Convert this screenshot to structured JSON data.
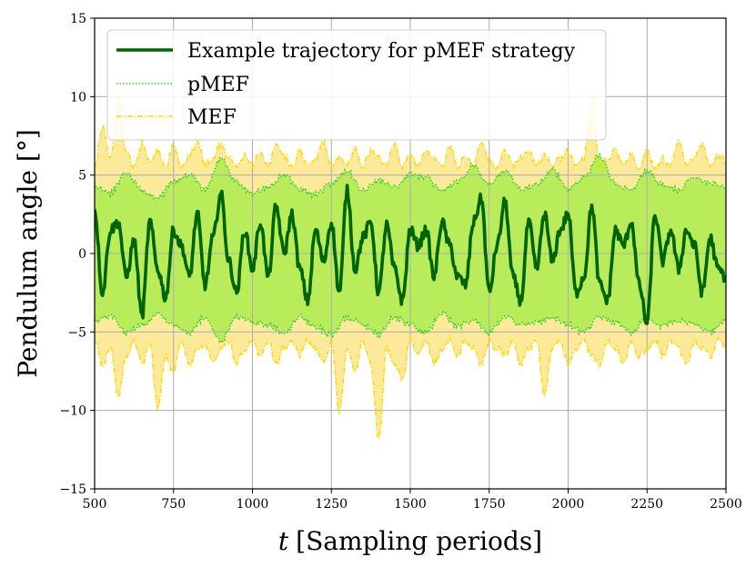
{
  "chart_data": {
    "type": "line",
    "xlabel_var": "t",
    "xlabel_rest": "[Sampling periods]",
    "ylabel": "Pendulum angle [°]",
    "xlim": [
      500,
      2500
    ],
    "ylim": [
      -15,
      15
    ],
    "x_ticks": [
      500,
      750,
      1000,
      1250,
      1500,
      1750,
      2000,
      2250,
      2500
    ],
    "x_tick_labels": [
      "500",
      "750",
      "1000",
      "1250",
      "1500",
      "1750",
      "2000",
      "2250",
      "2500"
    ],
    "y_ticks": [
      -15,
      -10,
      -5,
      0,
      5,
      10,
      15
    ],
    "y_tick_labels": [
      "−15",
      "−10",
      "−5",
      "0",
      "5",
      "10",
      "15"
    ],
    "grid": true,
    "legend_position": "top-left",
    "colors": {
      "trajectory": "#006400",
      "pmef": "#32cd32",
      "pmef_fill": "#b9ec5a",
      "mef": "#ffd700",
      "mef_fill": "#fde99a",
      "grid": "#b0b0b0"
    },
    "series": [
      {
        "name": "Example trajectory for pMEF strategy",
        "style": "solid",
        "x": [
          500,
          525,
          550,
          575,
          600,
          625,
          650,
          675,
          700,
          725,
          750,
          775,
          800,
          825,
          850,
          875,
          900,
          925,
          950,
          975,
          1000,
          1025,
          1050,
          1075,
          1100,
          1125,
          1150,
          1175,
          1200,
          1225,
          1250,
          1275,
          1300,
          1325,
          1350,
          1375,
          1400,
          1425,
          1450,
          1475,
          1500,
          1525,
          1550,
          1575,
          1600,
          1625,
          1650,
          1675,
          1700,
          1725,
          1750,
          1775,
          1800,
          1825,
          1850,
          1875,
          1900,
          1925,
          1950,
          1975,
          2000,
          2025,
          2050,
          2075,
          2100,
          2125,
          2150,
          2175,
          2200,
          2225,
          2250,
          2275,
          2300,
          2325,
          2350,
          2375,
          2400,
          2425,
          2450,
          2475,
          2500
        ],
        "y": [
          2.8,
          -2.5,
          1.5,
          2.0,
          -1.5,
          0.8,
          -4.0,
          2.0,
          -1.0,
          -2.8,
          1.5,
          0.5,
          -1.5,
          2.5,
          -2.0,
          1.0,
          3.8,
          -0.5,
          -2.5,
          1.5,
          -1.0,
          2.0,
          -1.5,
          3.0,
          0.0,
          2.5,
          -1.0,
          -3.0,
          1.5,
          -0.5,
          2.0,
          -2.5,
          4.0,
          -1.0,
          1.0,
          2.0,
          -2.5,
          1.8,
          -1.0,
          -3.0,
          1.5,
          0.5,
          1.5,
          -1.5,
          2.0,
          0.5,
          -1.5,
          -2.0,
          2.0,
          3.5,
          -2.5,
          0.5,
          3.3,
          -1.5,
          -3.0,
          2.0,
          -1.0,
          2.5,
          -0.5,
          1.5,
          2.5,
          -2.5,
          -1.5,
          3.0,
          -2.0,
          -3.0,
          1.5,
          0.5,
          2.0,
          -2.0,
          -4.5,
          2.5,
          -0.5,
          1.5,
          -1.0,
          1.5,
          0.5,
          -2.5,
          1.0,
          -1.0,
          -1.5
        ]
      },
      {
        "name": "pMEF",
        "style": "dotted",
        "x": [
          500,
          550,
          600,
          650,
          700,
          750,
          800,
          850,
          900,
          950,
          1000,
          1050,
          1100,
          1150,
          1200,
          1250,
          1300,
          1350,
          1400,
          1450,
          1500,
          1550,
          1600,
          1650,
          1700,
          1750,
          1800,
          1850,
          1900,
          1950,
          2000,
          2050,
          2100,
          2150,
          2200,
          2250,
          2300,
          2350,
          2400,
          2450,
          2500
        ],
        "upper": [
          4.3,
          3.8,
          5.2,
          4.0,
          3.5,
          4.5,
          5.0,
          4.0,
          6.0,
          4.5,
          3.8,
          4.2,
          5.0,
          4.0,
          3.7,
          4.4,
          5.2,
          4.0,
          4.6,
          4.2,
          5.0,
          4.8,
          3.9,
          4.5,
          5.6,
          4.3,
          5.2,
          4.0,
          4.4,
          5.3,
          4.0,
          4.8,
          6.2,
          4.4,
          4.0,
          5.2,
          4.3,
          4.0,
          4.9,
          4.4,
          4.2
        ],
        "lower": [
          -4.3,
          -3.9,
          -5.0,
          -4.5,
          -3.8,
          -4.5,
          -5.0,
          -4.0,
          -5.5,
          -4.0,
          -4.3,
          -4.5,
          -5.0,
          -4.0,
          -4.6,
          -5.2,
          -4.0,
          -4.5,
          -5.1,
          -4.0,
          -4.5,
          -5.0,
          -3.8,
          -4.6,
          -4.2,
          -5.0,
          -4.0,
          -4.5,
          -4.4,
          -4.0,
          -4.5,
          -5.0,
          -4.0,
          -4.3,
          -5.0,
          -4.0,
          -4.6,
          -4.2,
          -4.5,
          -5.0,
          -4.2
        ]
      },
      {
        "name": "MEF",
        "style": "dashdot",
        "x": [
          500,
          525,
          550,
          575,
          600,
          625,
          650,
          675,
          700,
          725,
          750,
          775,
          800,
          825,
          850,
          875,
          900,
          925,
          950,
          975,
          1000,
          1025,
          1050,
          1075,
          1100,
          1125,
          1150,
          1175,
          1200,
          1225,
          1250,
          1275,
          1300,
          1325,
          1350,
          1375,
          1400,
          1425,
          1450,
          1475,
          1500,
          1525,
          1550,
          1575,
          1600,
          1625,
          1650,
          1675,
          1700,
          1725,
          1750,
          1775,
          1800,
          1825,
          1850,
          1875,
          1900,
          1925,
          1950,
          1975,
          2000,
          2025,
          2050,
          2075,
          2100,
          2125,
          2150,
          2175,
          2200,
          2225,
          2250,
          2275,
          2300,
          2325,
          2350,
          2375,
          2400,
          2425,
          2450,
          2475,
          2500
        ],
        "upper": [
          5.5,
          8.0,
          6.0,
          9.8,
          6.5,
          5.5,
          7.0,
          5.8,
          6.5,
          5.5,
          6.8,
          5.5,
          6.2,
          7.2,
          5.6,
          6.0,
          7.0,
          6.0,
          5.5,
          6.2,
          5.5,
          6.5,
          5.5,
          7.0,
          6.2,
          5.5,
          6.5,
          5.5,
          6.0,
          7.0,
          5.5,
          6.2,
          5.5,
          6.8,
          5.5,
          6.5,
          6.0,
          5.5,
          7.0,
          5.5,
          6.2,
          5.5,
          6.5,
          6.0,
          5.5,
          6.8,
          5.5,
          6.2,
          5.5,
          7.0,
          6.0,
          5.5,
          6.5,
          5.5,
          6.0,
          6.5,
          5.5,
          6.2,
          5.5,
          6.0,
          6.5,
          5.5,
          6.0,
          9.8,
          5.5,
          6.0,
          6.5,
          5.5,
          6.2,
          5.5,
          6.5,
          5.5,
          6.0,
          5.5,
          7.2,
          5.5,
          6.0,
          7.0,
          5.5,
          6.2,
          5.8
        ],
        "lower": [
          -5.5,
          -7.0,
          -6.0,
          -9.0,
          -6.5,
          -5.5,
          -7.0,
          -5.8,
          -9.8,
          -6.5,
          -7.5,
          -5.5,
          -7.0,
          -6.0,
          -5.8,
          -7.0,
          -6.0,
          -5.5,
          -7.0,
          -6.0,
          -5.5,
          -6.5,
          -5.5,
          -7.0,
          -6.0,
          -5.5,
          -6.5,
          -5.5,
          -6.0,
          -7.0,
          -5.5,
          -10.0,
          -6.0,
          -7.5,
          -5.5,
          -7.0,
          -11.8,
          -6.0,
          -7.0,
          -8.0,
          -5.5,
          -6.5,
          -5.5,
          -7.0,
          -6.0,
          -5.5,
          -6.5,
          -5.5,
          -6.0,
          -7.0,
          -5.5,
          -6.0,
          -6.5,
          -5.5,
          -7.0,
          -6.0,
          -5.5,
          -9.0,
          -6.0,
          -5.5,
          -7.0,
          -6.0,
          -5.5,
          -6.5,
          -7.0,
          -5.5,
          -6.0,
          -7.0,
          -5.5,
          -6.5,
          -6.0,
          -5.5,
          -6.5,
          -5.5,
          -6.0,
          -7.0,
          -5.5,
          -6.0,
          -6.5,
          -5.5,
          -6.0
        ]
      }
    ]
  }
}
